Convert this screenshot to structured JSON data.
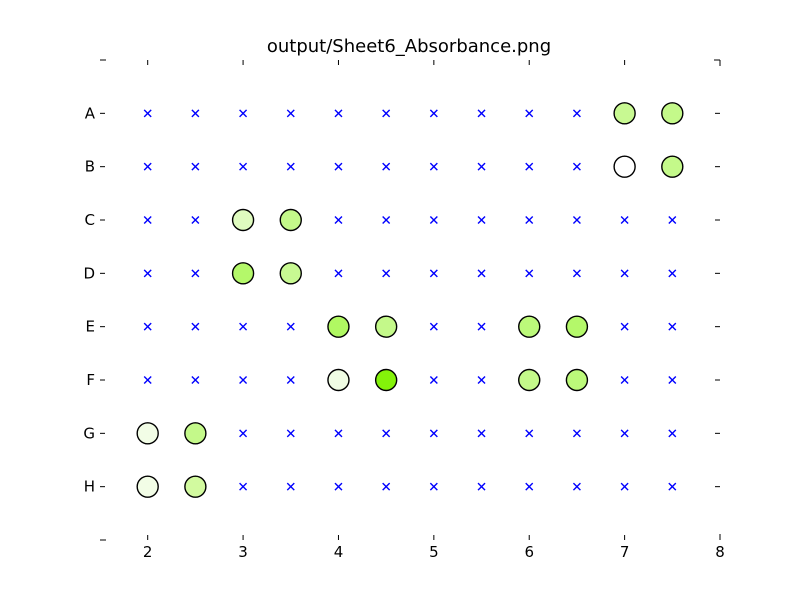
{
  "chart_data": {
    "type": "scatter",
    "title": "output/Sheet6_Absorbance.png",
    "xlabel": "",
    "ylabel": "",
    "xlim": [
      1.5,
      8
    ],
    "x_ticks": [
      "2",
      "3",
      "4",
      "5",
      "6",
      "7",
      "8"
    ],
    "rows": [
      "A",
      "B",
      "C",
      "D",
      "E",
      "F",
      "G",
      "H"
    ],
    "x_positions": [
      2,
      2.5,
      3,
      3.5,
      4,
      4.5,
      5,
      5.5,
      6,
      6.5,
      7,
      7.5
    ],
    "grid": false,
    "empty_marker": {
      "shape": "x",
      "color": "#0000ff"
    },
    "wells": [
      {
        "row": "A",
        "x": 7,
        "color": "#c8f992"
      },
      {
        "row": "A",
        "x": 7.5,
        "color": "#c4f98a"
      },
      {
        "row": "B",
        "x": 7,
        "color": "#ffffff"
      },
      {
        "row": "B",
        "x": 7.5,
        "color": "#c4f98a"
      },
      {
        "row": "C",
        "x": 3,
        "color": "#dffbbf"
      },
      {
        "row": "C",
        "x": 3.5,
        "color": "#c4f98a"
      },
      {
        "row": "D",
        "x": 3,
        "color": "#b4f86a"
      },
      {
        "row": "D",
        "x": 3.5,
        "color": "#c8f992"
      },
      {
        "row": "E",
        "x": 4,
        "color": "#b0f862"
      },
      {
        "row": "E",
        "x": 4.5,
        "color": "#c4f98a"
      },
      {
        "row": "E",
        "x": 6,
        "color": "#bcf97a"
      },
      {
        "row": "E",
        "x": 6.5,
        "color": "#b4f86a"
      },
      {
        "row": "F",
        "x": 4,
        "color": "#f0fde4"
      },
      {
        "row": "F",
        "x": 4.5,
        "color": "#84f20a"
      },
      {
        "row": "F",
        "x": 6,
        "color": "#c4f98a"
      },
      {
        "row": "F",
        "x": 6.5,
        "color": "#bcf97a"
      },
      {
        "row": "G",
        "x": 2,
        "color": "#f2fde6"
      },
      {
        "row": "G",
        "x": 2.5,
        "color": "#c4f98a"
      },
      {
        "row": "H",
        "x": 2,
        "color": "#f2fde6"
      },
      {
        "row": "H",
        "x": 2.5,
        "color": "#d2fa9f"
      }
    ]
  }
}
